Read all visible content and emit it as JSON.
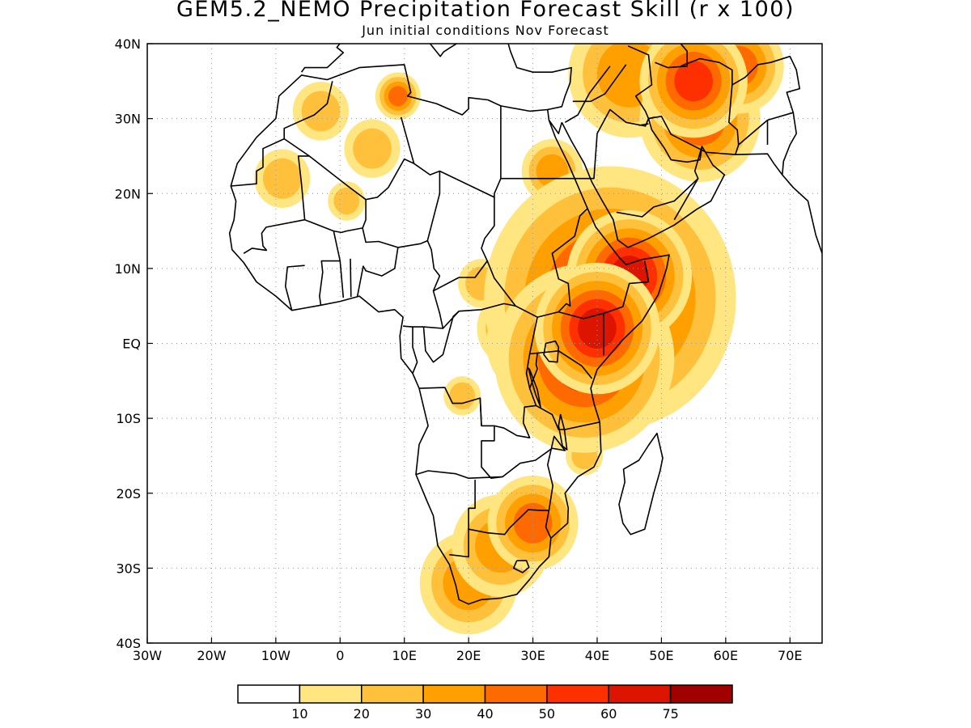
{
  "title": "GEM5.2_NEMO Precipitation Forecast Skill (r x 100)",
  "subtitle": "Jun initial conditions  Nov Forecast",
  "map": {
    "lon_range": [
      -30,
      75
    ],
    "lat_range": [
      -40,
      40
    ],
    "lon_ticks": [
      {
        "v": -30,
        "label": "30W"
      },
      {
        "v": -20,
        "label": "20W"
      },
      {
        "v": -10,
        "label": "10W"
      },
      {
        "v": 0,
        "label": "0"
      },
      {
        "v": 10,
        "label": "10E"
      },
      {
        "v": 20,
        "label": "20E"
      },
      {
        "v": 30,
        "label": "30E"
      },
      {
        "v": 40,
        "label": "40E"
      },
      {
        "v": 50,
        "label": "50E"
      },
      {
        "v": 60,
        "label": "60E"
      },
      {
        "v": 70,
        "label": "70E"
      }
    ],
    "lat_ticks": [
      {
        "v": 40,
        "label": "40N"
      },
      {
        "v": 30,
        "label": "30N"
      },
      {
        "v": 20,
        "label": "20N"
      },
      {
        "v": 10,
        "label": "10N"
      },
      {
        "v": 0,
        "label": "EQ"
      },
      {
        "v": -10,
        "label": "10S"
      },
      {
        "v": -20,
        "label": "20S"
      },
      {
        "v": -30,
        "label": "30S"
      },
      {
        "v": -40,
        "label": "40S"
      }
    ],
    "grid": true
  },
  "colorbar": {
    "colors": [
      "#ffffff",
      "#ffe680",
      "#ffc03c",
      "#ffa000",
      "#ff6a00",
      "#ff3000",
      "#dc1400",
      "#a00000"
    ],
    "labels": [
      "10",
      "20",
      "30",
      "40",
      "50",
      "60",
      "75"
    ]
  },
  "chart_data": {
    "type": "heatmap",
    "variable": "r x 100",
    "blobs": [
      {
        "lon": 42,
        "lat": 6,
        "level": 5,
        "r": 7
      },
      {
        "lon": 38,
        "lat": -2,
        "level": 5,
        "r": 5
      },
      {
        "lon": 45,
        "lat": 9,
        "level": 6,
        "r": 3
      },
      {
        "lon": 40,
        "lat": 2,
        "level": 6,
        "r": 3
      },
      {
        "lon": 31,
        "lat": 0,
        "level": 4,
        "r": 3.5
      },
      {
        "lon": 27,
        "lat": 2,
        "level": 3,
        "r": 3
      },
      {
        "lon": 20,
        "lat": -32,
        "level": 3,
        "r": 4
      },
      {
        "lon": 25,
        "lat": -27,
        "level": 3,
        "r": 4
      },
      {
        "lon": 30,
        "lat": -24,
        "level": 4,
        "r": 3
      },
      {
        "lon": 55,
        "lat": 35,
        "level": 5,
        "r": 3
      },
      {
        "lon": 56,
        "lat": 30,
        "level": 4,
        "r": 4
      },
      {
        "lon": 45,
        "lat": 36,
        "level": 3,
        "r": 5
      },
      {
        "lon": 62,
        "lat": 37,
        "level": 4,
        "r": 3
      },
      {
        "lon": 9,
        "lat": 33,
        "level": 4,
        "r": 1.5
      },
      {
        "lon": 5,
        "lat": 26,
        "level": 2,
        "r": 3
      },
      {
        "lon": -9,
        "lat": 22,
        "level": 2,
        "r": 3
      },
      {
        "lon": -3,
        "lat": 31,
        "level": 2,
        "r": 3
      },
      {
        "lon": 33,
        "lat": 23,
        "level": 3,
        "r": 2.5
      },
      {
        "lon": 1,
        "lat": 19,
        "level": 2,
        "r": 2
      },
      {
        "lon": 22,
        "lat": 8,
        "level": 2,
        "r": 2.5
      },
      {
        "lon": 19,
        "lat": -7,
        "level": 2,
        "r": 2
      },
      {
        "lon": 38,
        "lat": -15,
        "level": 2,
        "r": 2
      },
      {
        "lon": 33,
        "lat": 20,
        "level": 2,
        "r": 2
      }
    ]
  }
}
